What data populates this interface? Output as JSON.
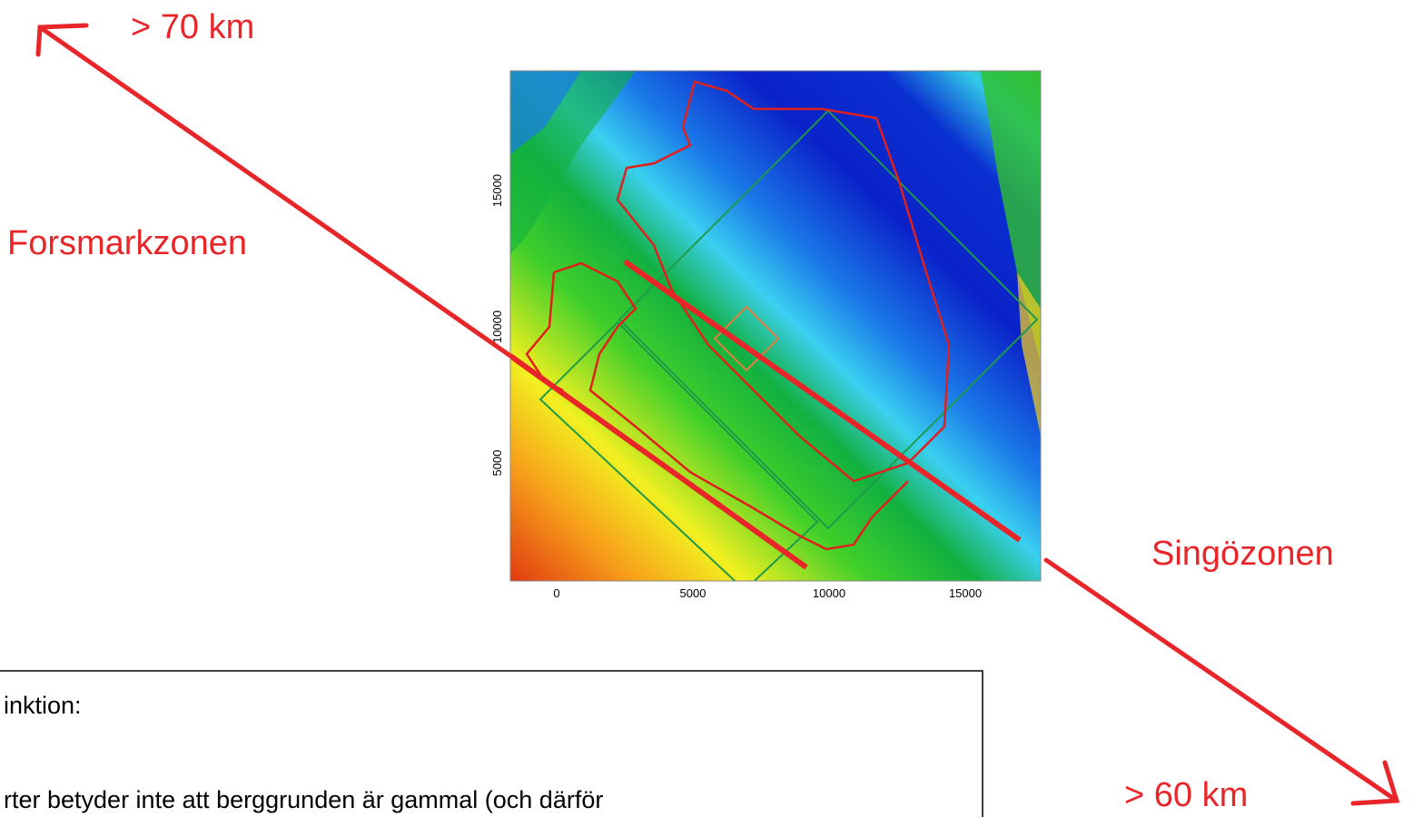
{
  "labels": {
    "top_left": "> 70 km",
    "left_zone": "Forsmarkzonen",
    "right_zone": "Singözonen",
    "bottom_right": "> 60 km"
  },
  "map": {
    "xticks": [
      0,
      5000,
      10000,
      15000
    ],
    "yticks": [
      5000,
      10000,
      15000
    ]
  },
  "textbox": {
    "lines": [
      "inktion:",
      "rter betyder inte att berggrunden är gammal (och därför"
    ]
  }
}
